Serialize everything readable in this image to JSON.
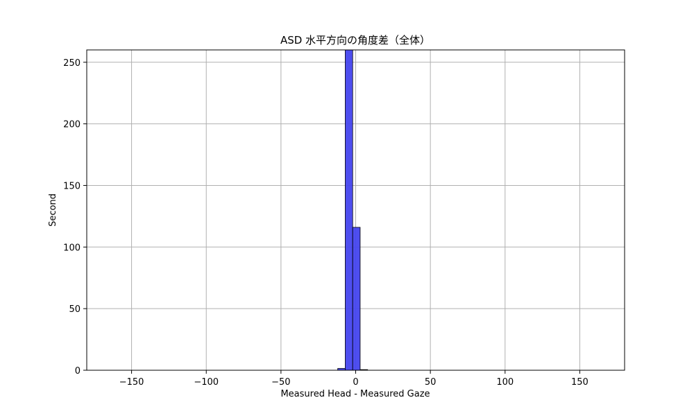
{
  "chart_data": {
    "type": "bar",
    "title": "ASD 水平方向の角度差（全体）",
    "xlabel": "Measured Head - Measured Gaze",
    "ylabel": "Second",
    "xlim": [
      -180,
      180
    ],
    "ylim": [
      0,
      260
    ],
    "xticks": [
      -150,
      -100,
      -50,
      0,
      50,
      100,
      150
    ],
    "xtick_labels": [
      "−150",
      "−100",
      "−50",
      "0",
      "50",
      "100",
      "150"
    ],
    "yticks": [
      0,
      50,
      100,
      150,
      200,
      250
    ],
    "ytick_labels": [
      "0",
      "50",
      "100",
      "150",
      "200",
      "250"
    ],
    "grid": true,
    "bar_color": "#4444ee",
    "bar_edge_color": "#000000",
    "bins": [
      {
        "x0": -12,
        "x1": -7,
        "value": 1.5
      },
      {
        "x0": -7,
        "x1": -2,
        "value": 260
      },
      {
        "x0": -2,
        "x1": 3,
        "value": 116
      },
      {
        "x0": 3,
        "x1": 8,
        "value": 0.5
      }
    ]
  }
}
